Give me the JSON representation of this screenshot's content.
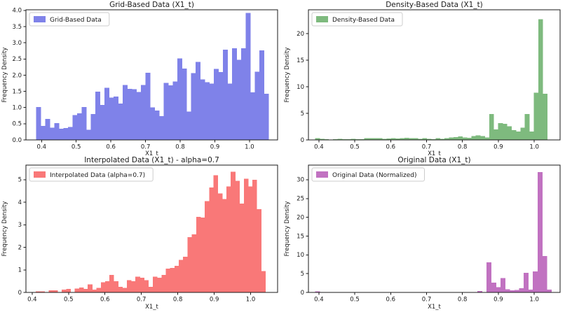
{
  "figure": {
    "background": "#ffffff",
    "layout": "2x2-histogram-grid"
  },
  "chart_data": [
    {
      "id": "grid-based",
      "type": "bar",
      "style": "histogram",
      "title": "Grid-Based Data (X1_t)",
      "xlabel": "X1_t",
      "ylabel": "Frequency Density",
      "legend": {
        "label": "Grid-Based Data",
        "position": "upper-left"
      },
      "color": "#7f82e9",
      "grid": false,
      "xlim": [
        0.355,
        1.081
      ],
      "ylim": [
        0,
        4.02
      ],
      "xtick_values": [
        0.4,
        0.5,
        0.6,
        0.7,
        0.8,
        0.9,
        1.0
      ],
      "xtick_labels": [
        "0.4",
        "0.5",
        "0.6",
        "0.7",
        "0.8",
        "0.9",
        "1.0"
      ],
      "ytick_values": [
        0,
        0.5,
        1.0,
        1.5,
        2.0,
        2.5,
        3.0,
        3.5,
        4.0
      ],
      "ytick_labels": [
        "0.0",
        "0.5",
        "1.0",
        "1.5",
        "2.0",
        "2.5",
        "3.0",
        "3.5",
        "4.0"
      ],
      "bin_start": 0.384,
      "bin_width": 0.01316,
      "values": [
        1.02,
        0.43,
        0.65,
        0.38,
        0.52,
        0.35,
        0.37,
        0.4,
        0.77,
        0.82,
        1.02,
        0.31,
        0.8,
        1.49,
        1.08,
        1.61,
        1.31,
        1.34,
        1.12,
        1.7,
        1.58,
        1.57,
        1.48,
        1.7,
        2.07,
        1.01,
        0.91,
        0.73,
        1.76,
        1.69,
        1.8,
        2.52,
        2.21,
        0.88,
        2.06,
        2.41,
        1.87,
        1.78,
        1.74,
        2.19,
        2.1,
        2.79,
        1.74,
        2.83,
        2.47,
        2.83,
        3.92,
        1.47,
        2.11,
        2.77,
        1.43
      ]
    },
    {
      "id": "density-based",
      "type": "bar",
      "style": "histogram",
      "title": "Density-Based Data (X1_t)",
      "xlabel": "X1_t",
      "ylabel": "Frequency Density",
      "legend": {
        "label": "Density-Based Data",
        "position": "upper-left"
      },
      "color": "#7eba7e",
      "grid": false,
      "xlim": [
        0.371,
        1.072
      ],
      "ylim": [
        0,
        24.47
      ],
      "xtick_values": [
        0.4,
        0.5,
        0.6,
        0.7,
        0.8,
        0.9,
        1.0
      ],
      "xtick_labels": [
        "0.4",
        "0.5",
        "0.6",
        "0.7",
        "0.8",
        "0.9",
        "1.0"
      ],
      "ytick_values": [
        0,
        5,
        10,
        15,
        20
      ],
      "ytick_labels": [
        "0",
        "5",
        "10",
        "15",
        "20"
      ],
      "bin_start": 0.39,
      "bin_width": 0.01242,
      "values": [
        0.35,
        0.2,
        0.15,
        0.05,
        0.1,
        0.2,
        0.1,
        0.15,
        0.2,
        0.1,
        0.15,
        0.35,
        0.3,
        0.3,
        0.35,
        0.2,
        0.25,
        0.3,
        0.25,
        0.35,
        0.4,
        0.35,
        0.3,
        0.2,
        0.3,
        0.2,
        0.15,
        0.3,
        0.2,
        0.35,
        0.45,
        0.5,
        0.65,
        0.45,
        0.4,
        0.75,
        0.85,
        0.7,
        0.45,
        4.85,
        2.0,
        3.15,
        3.0,
        2.55,
        1.85,
        1.6,
        2.3,
        4.85,
        1.6,
        8.9,
        22.7,
        8.7
      ]
    },
    {
      "id": "interpolated",
      "type": "bar",
      "style": "histogram",
      "title": "Interpolated Data (X1_t) - alpha=0.7",
      "xlabel": "X1_t",
      "ylabel": "Frequency Density",
      "legend": {
        "label": "Interpolated Data (alpha=0.7)",
        "position": "upper-left"
      },
      "color": "#f97878",
      "grid": false,
      "xlim": [
        0.383,
        1.074
      ],
      "ylim": [
        0,
        5.65
      ],
      "xtick_values": [
        0.4,
        0.5,
        0.6,
        0.7,
        0.8,
        0.9,
        1.0
      ],
      "xtick_labels": [
        "0.4",
        "0.5",
        "0.6",
        "0.7",
        "0.8",
        "0.9",
        "1.0"
      ],
      "ytick_values": [
        0,
        1,
        2,
        3,
        4,
        5
      ],
      "ytick_labels": [
        "0",
        "1",
        "2",
        "3",
        "4",
        "5"
      ],
      "bin_start": 0.41,
      "bin_width": 0.0119,
      "values": [
        0.05,
        0.05,
        0,
        0.1,
        0.1,
        0,
        0.13,
        0.16,
        0,
        0.17,
        0.22,
        0.15,
        0.35,
        0.12,
        0.2,
        0.45,
        0.5,
        0.78,
        0.5,
        0.25,
        0.2,
        0.55,
        0.5,
        0.7,
        0.65,
        0.55,
        0.25,
        0.7,
        0.65,
        0.78,
        1.05,
        1.08,
        1.18,
        1.45,
        1.58,
        2.45,
        2.58,
        3.35,
        3.32,
        4.05,
        4.65,
        5.2,
        4.4,
        4.15,
        4.7,
        5.35,
        4.95,
        3.95,
        5.05,
        4.7,
        5.0,
        3.7,
        0.95
      ]
    },
    {
      "id": "original",
      "type": "bar",
      "style": "histogram",
      "title": "Original Data (X1_t)",
      "xlabel": "X1_t",
      "ylabel": "Frequency Density",
      "legend": {
        "label": "Original Data (Normalized)",
        "position": "upper-left"
      },
      "color": "#c172c1",
      "grid": false,
      "xlim": [
        0.371,
        1.072
      ],
      "ylim": [
        0,
        33.9
      ],
      "xtick_values": [
        0.4,
        0.5,
        0.6,
        0.7,
        0.8,
        0.9,
        1.0
      ],
      "xtick_labels": [
        "0.4",
        "0.5",
        "0.6",
        "0.7",
        "0.8",
        "0.9",
        "1.0"
      ],
      "ytick_values": [
        0,
        5,
        10,
        15,
        20,
        25,
        30
      ],
      "ytick_labels": [
        "0",
        "5",
        "10",
        "15",
        "20",
        "25",
        "30"
      ],
      "bin_start": 0.39,
      "bin_width": 0.0129,
      "values": [
        0.3,
        0,
        0,
        0,
        0,
        0,
        0,
        0,
        0,
        0,
        0,
        0,
        0,
        0,
        0,
        0.1,
        0,
        0,
        0,
        0,
        0.1,
        0,
        0,
        0,
        0.1,
        0,
        0,
        0,
        0.1,
        0,
        0,
        0,
        0.1,
        0,
        0,
        0.35,
        0.1,
        8.0,
        2.6,
        1.4,
        3.8,
        0.85,
        0.6,
        0.65,
        1.1,
        5.2,
        0.7,
        5.6,
        32.0,
        9.7,
        0.7
      ]
    }
  ]
}
